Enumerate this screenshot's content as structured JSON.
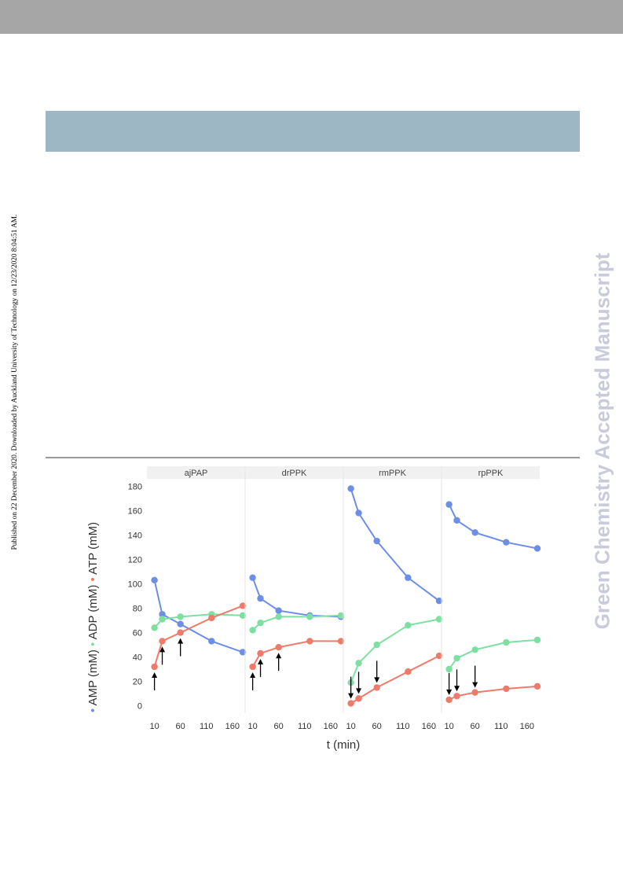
{
  "page": {
    "side_note": "Published on 22 December 2020. Downloaded by Auckland University of Technology on 12/23/2020 8:04:51 AM.",
    "watermark": "Green Chemistry Accepted Manuscript"
  },
  "chart_data": {
    "type": "line",
    "facets": [
      "ajPAP",
      "drPPK",
      "rmPPK",
      "rpPPK"
    ],
    "xlabel": "t (min)",
    "ylabel_parts": [
      {
        "marker": "•",
        "text": "AMP (mM)",
        "color": "#6c8ee6"
      },
      {
        "marker": "•",
        "text": "ADP (mM)",
        "color": "#7de0a0"
      },
      {
        "marker": "•",
        "text": "ATP (mM)",
        "color": "#ee7b6a"
      }
    ],
    "x_ticks": [
      10,
      60,
      110,
      160
    ],
    "y_ticks": [
      0,
      20,
      40,
      60,
      80,
      100,
      120,
      140,
      160,
      180
    ],
    "xlim": [
      0,
      180
    ],
    "ylim": [
      -6,
      186
    ],
    "grid": false,
    "series_colors": {
      "AMP": "#6c8ee6",
      "ADP": "#7de0a0",
      "ATP": "#ee7b6a"
    },
    "panels": [
      {
        "name": "ajPAP",
        "x": [
          10,
          25,
          60,
          120,
          180
        ],
        "AMP": [
          103,
          75,
          67,
          53,
          44
        ],
        "ADP": [
          64,
          71,
          73,
          75,
          74
        ],
        "ATP": [
          32,
          53,
          60,
          72,
          82
        ],
        "arrows": [
          {
            "x": 10,
            "dir": "up"
          },
          {
            "x": 25,
            "dir": "up"
          },
          {
            "x": 60,
            "dir": "up"
          }
        ]
      },
      {
        "name": "drPPK",
        "x": [
          10,
          25,
          60,
          120,
          180
        ],
        "AMP": [
          105,
          88,
          78,
          74,
          73
        ],
        "ADP": [
          62,
          68,
          73,
          73,
          74
        ],
        "ATP": [
          32,
          43,
          48,
          53,
          53
        ],
        "arrows": [
          {
            "x": 10,
            "dir": "up"
          },
          {
            "x": 25,
            "dir": "up"
          },
          {
            "x": 60,
            "dir": "up"
          }
        ]
      },
      {
        "name": "rmPPK",
        "x": [
          10,
          25,
          60,
          120,
          180
        ],
        "AMP": [
          178,
          158,
          135,
          105,
          86
        ],
        "ADP": [
          19,
          35,
          50,
          66,
          71
        ],
        "ATP": [
          2,
          6,
          15,
          28,
          41
        ],
        "arrows": [
          {
            "x": 10,
            "dir": "down"
          },
          {
            "x": 25,
            "dir": "down"
          },
          {
            "x": 60,
            "dir": "down"
          }
        ]
      },
      {
        "name": "rpPPK",
        "x": [
          10,
          25,
          60,
          120,
          180
        ],
        "AMP": [
          165,
          152,
          142,
          134,
          129
        ],
        "ADP": [
          30,
          39,
          46,
          52,
          54
        ],
        "ATP": [
          5,
          8,
          11,
          14,
          16
        ],
        "arrows": [
          {
            "x": 10,
            "dir": "down"
          },
          {
            "x": 25,
            "dir": "down"
          },
          {
            "x": 60,
            "dir": "down"
          }
        ]
      }
    ]
  }
}
